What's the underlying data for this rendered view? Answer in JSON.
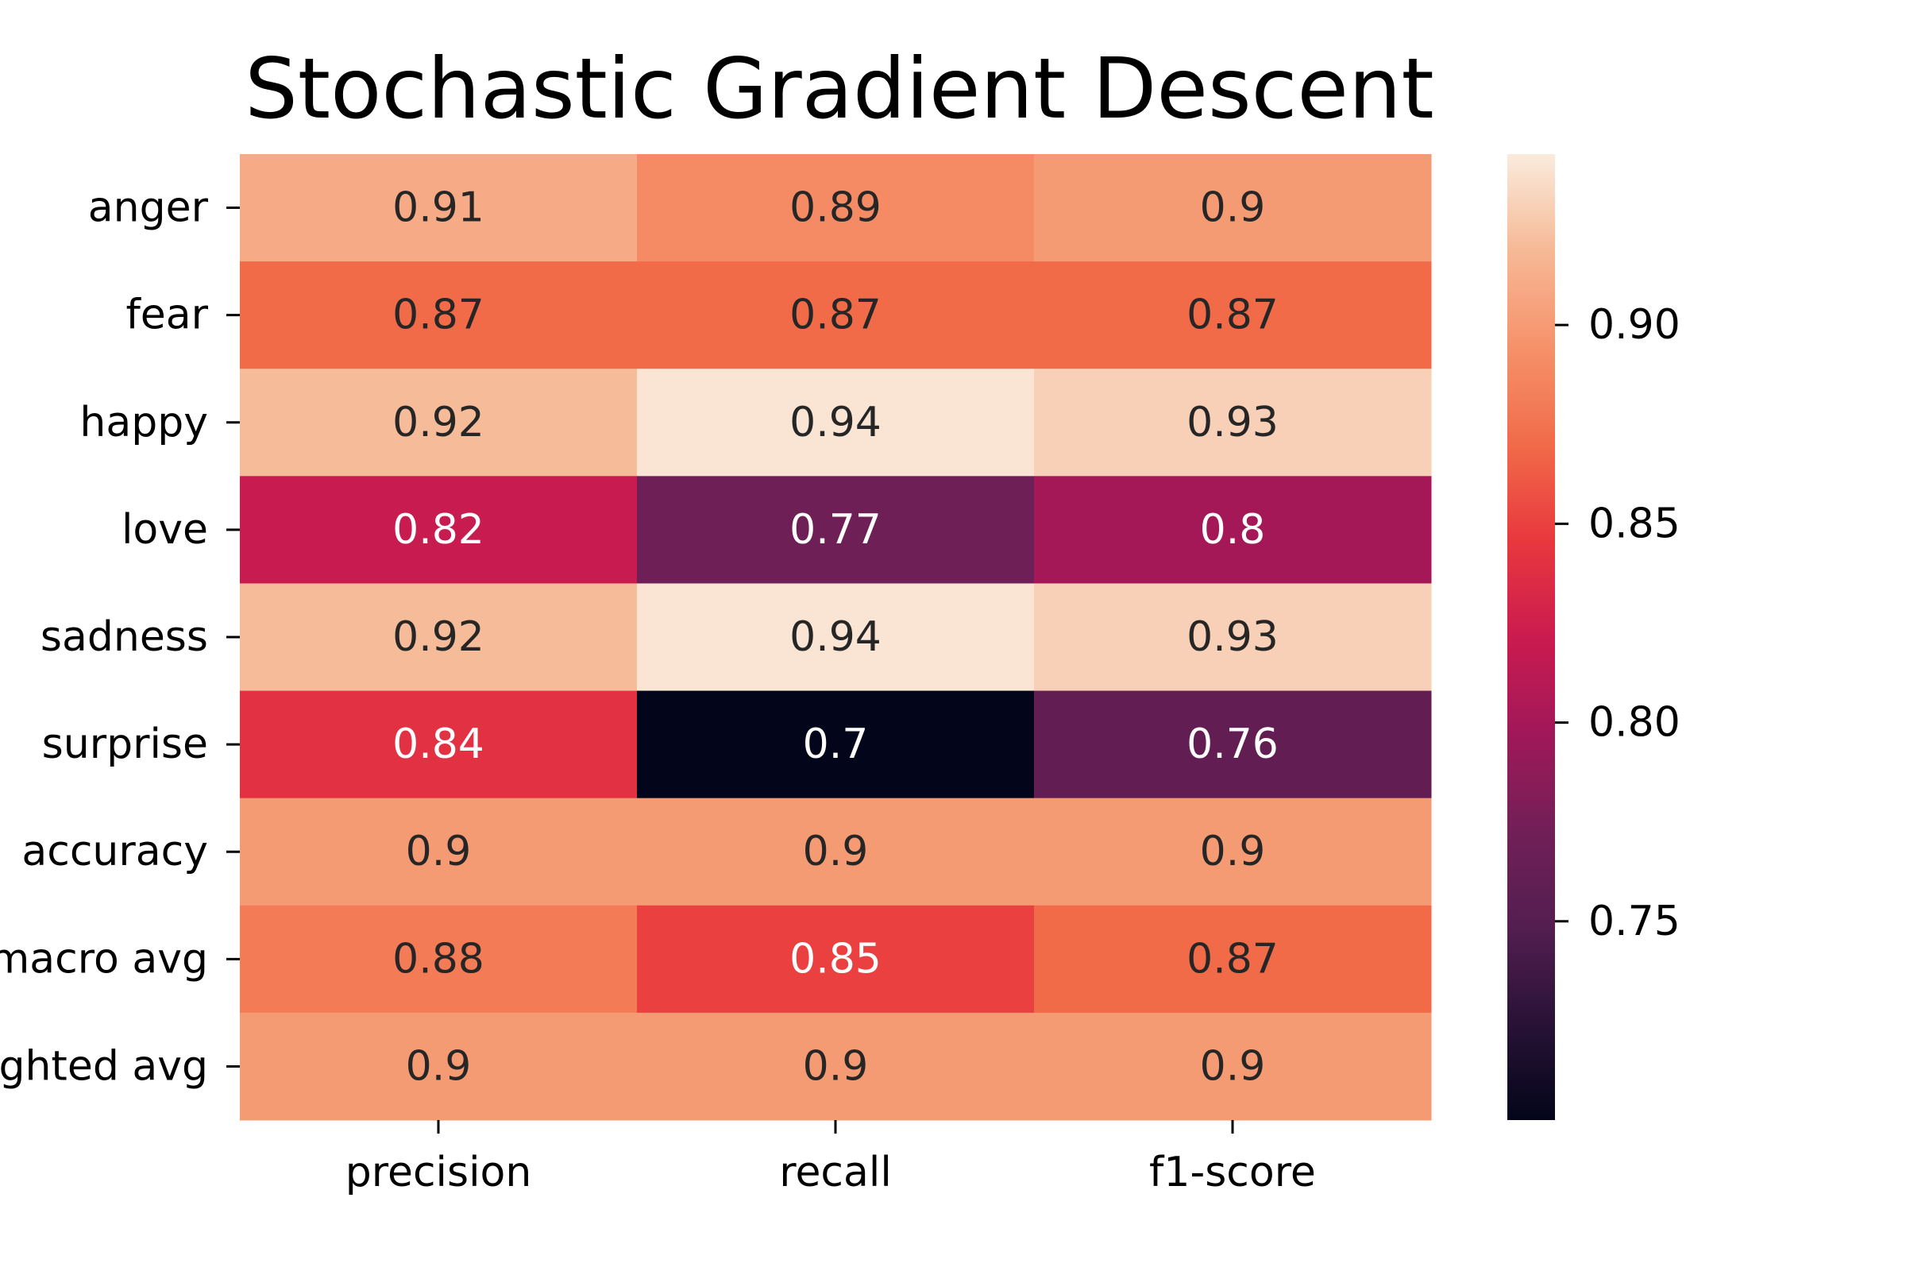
{
  "chart_data": {
    "type": "heatmap",
    "title": "Stochastic Gradient Descent",
    "rows": [
      "anger",
      "fear",
      "happy",
      "love",
      "sadness",
      "surprise",
      "accuracy",
      "macro avg",
      "weighted avg"
    ],
    "columns": [
      "precision",
      "recall",
      "f1-score"
    ],
    "values": [
      [
        0.91,
        0.89,
        0.9
      ],
      [
        0.87,
        0.87,
        0.87
      ],
      [
        0.92,
        0.94,
        0.93
      ],
      [
        0.82,
        0.77,
        0.8
      ],
      [
        0.92,
        0.94,
        0.93
      ],
      [
        0.84,
        0.7,
        0.76
      ],
      [
        0.9,
        0.9,
        0.9
      ],
      [
        0.88,
        0.85,
        0.87
      ],
      [
        0.9,
        0.9,
        0.9
      ]
    ],
    "colorbar": {
      "colormap": "rocket",
      "vmin": 0.7,
      "vmax": 0.943,
      "ticks": [
        0.75,
        0.8,
        0.85,
        0.9
      ],
      "tick_labels": [
        "0.75",
        "0.80",
        "0.85",
        "0.90"
      ]
    },
    "annotation_colors": {
      "light_text": "#ffffff",
      "dark_text": "#262626"
    }
  }
}
